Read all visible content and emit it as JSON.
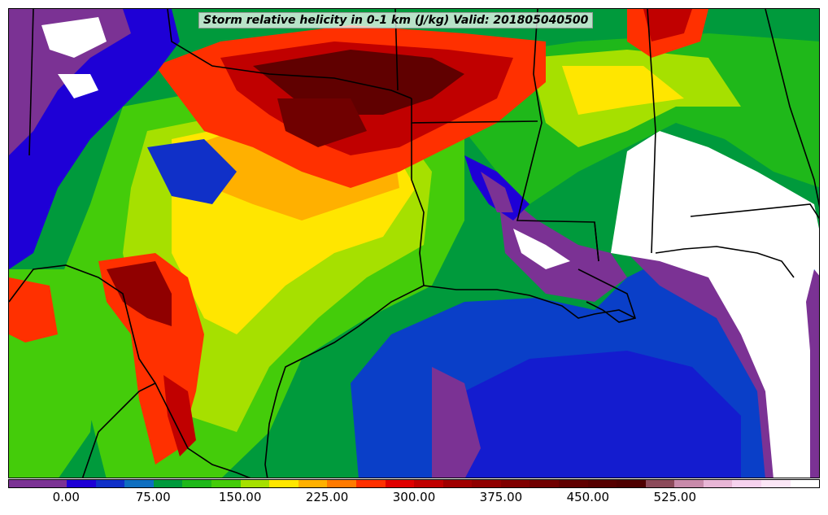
{
  "title": "Storm relative helicity in 0-1 km (J/kg) Valid: 201805040500",
  "colorbar": {
    "colors": [
      "#7b3294",
      "#7b3294",
      "#1e00d6",
      "#1030c8",
      "#0e6fc0",
      "#009a3c",
      "#1fb81a",
      "#44cc0a",
      "#a6e000",
      "#ffe600",
      "#ffb000",
      "#ff7a00",
      "#ff3000",
      "#e00000",
      "#c00000",
      "#a00000",
      "#900000",
      "#800000",
      "#700000",
      "#600000",
      "#560000",
      "#4e0000",
      "#8c4a5a",
      "#c88aaa",
      "#e8b6d6",
      "#f6d2ee",
      "#fbe6f6",
      "#ffffff"
    ],
    "tick_labels": [
      "0.00",
      "75.00",
      "150.00",
      "225.00",
      "300.00",
      "375.00",
      "450.00",
      "525.00"
    ]
  },
  "palette": {
    "purple": "#7b3294",
    "blue": "#1e00d6",
    "mid_blue": "#0a3fc8",
    "green": "#009a3c",
    "light_green": "#44cc0a",
    "yellow_green": "#a6e000",
    "yellow": "#ffe600",
    "orange": "#ff7a00",
    "red": "#ff1a00",
    "dark_red": "#b00000",
    "maroon": "#600000",
    "white": "#ffffff"
  }
}
